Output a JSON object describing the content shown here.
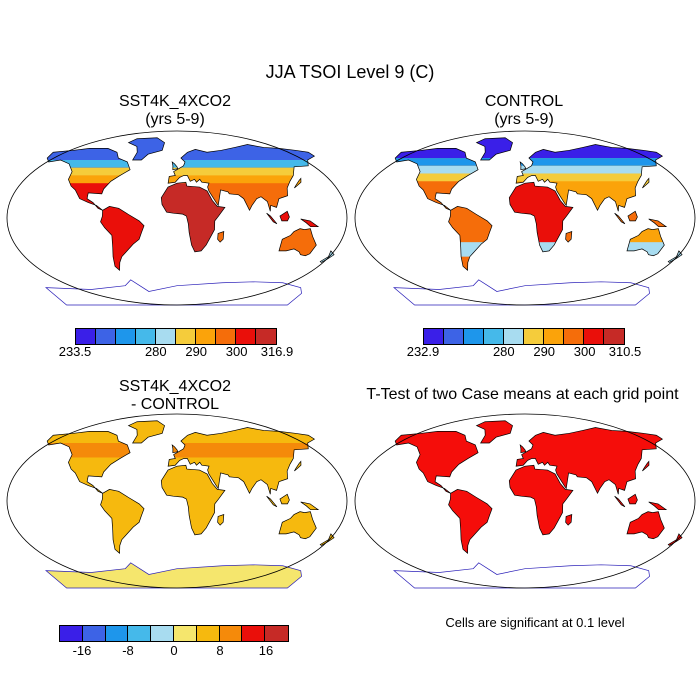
{
  "title": "JJA TSOI Level 9 (C)",
  "colors": {
    "temp_palette": [
      "#3a1fe8",
      "#3d63e6",
      "#1e96eb",
      "#45b9ea",
      "#a8dcf0",
      "#f5cc3b",
      "#fba30a",
      "#f56d0a",
      "#ea0f0a",
      "#c62a26"
    ],
    "diff_palette": [
      "#3a1fe8",
      "#3d63e6",
      "#1e96eb",
      "#45b9ea",
      "#a8dcf0",
      "#f5e66d",
      "#f6b90e",
      "#f58a0a",
      "#ea0f0a",
      "#c62a26"
    ],
    "land_outline": "#000000",
    "ocean": "#ffffff"
  },
  "panels": [
    {
      "title_line1": "SST4K_4XCO2",
      "title_line2": "(yrs 5-9)",
      "field": "model_temperature",
      "colorbar": {
        "labels": [
          "233.5",
          "280",
          "290",
          "300",
          "316.9"
        ]
      }
    },
    {
      "title_line1": "CONTROL",
      "title_line2": "(yrs 5-9)",
      "field": "control_temperature",
      "colorbar": {
        "labels": [
          "232.9",
          "280",
          "290",
          "300",
          "310.5"
        ]
      }
    },
    {
      "title_line1": "SST4K_4XCO2",
      "title_line2": "- CONTROL",
      "field": "difference",
      "colorbar": {
        "labels": [
          "-16",
          "-8",
          "0",
          "8",
          "16"
        ]
      }
    },
    {
      "title_line1": "T-Test of two Case means at each grid point",
      "title_line2": "",
      "field": "significance",
      "note": "Cells are significant at 0.1 level"
    }
  ],
  "chart_data": [
    {
      "type": "heatmap",
      "title": "SST4K_4XCO2 (yrs 5-9)",
      "variable": "TSOI level 9, JJA mean",
      "range": [
        233.5,
        316.9
      ],
      "colorbar_ticks": [
        233.5,
        280,
        290,
        300,
        316.9
      ],
      "colorbar_levels": 10
    },
    {
      "type": "heatmap",
      "title": "CONTROL (yrs 5-9)",
      "variable": "TSOI level 9, JJA mean",
      "range": [
        232.9,
        310.5
      ],
      "colorbar_ticks": [
        232.9,
        280,
        290,
        300,
        310.5
      ],
      "colorbar_levels": 10
    },
    {
      "type": "heatmap",
      "title": "SST4K_4XCO2 - CONTROL",
      "variable": "TSOI level 9 difference",
      "range": [
        -20,
        20
      ],
      "colorbar_ticks": [
        -16,
        -8,
        0,
        8,
        16
      ],
      "colorbar_levels": 10
    },
    {
      "type": "heatmap",
      "title": "T-Test of two Case means at each grid point",
      "variable": "significance mask",
      "annotation": "Cells are significant at 0.1 level"
    }
  ]
}
